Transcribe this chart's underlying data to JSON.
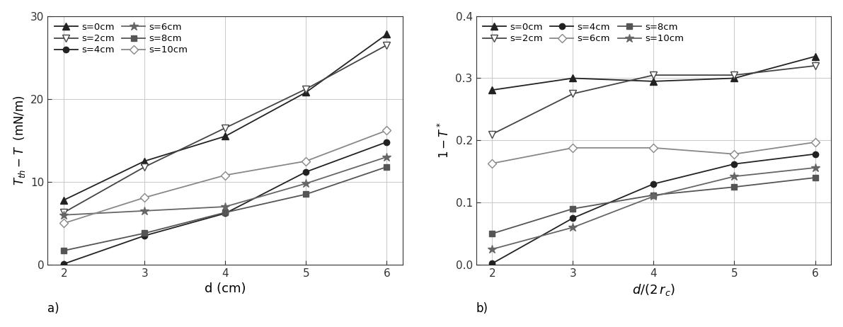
{
  "x": [
    2,
    3,
    4,
    5,
    6
  ],
  "left": {
    "ylabel": "$T_{th} - T$  (mN/m)",
    "xlabel": "d (cm)",
    "ylim": [
      0,
      30
    ],
    "yticks": [
      0,
      10,
      20,
      30
    ],
    "series": {
      "s=0cm": {
        "values": [
          7.8,
          12.5,
          15.5,
          20.8,
          27.8
        ],
        "marker": "^",
        "color": "#222222",
        "mfc": "#222222"
      },
      "s=2cm": {
        "values": [
          6.3,
          11.8,
          16.5,
          21.2,
          26.5
        ],
        "marker": "v",
        "color": "#444444",
        "mfc": "white"
      },
      "s=4cm": {
        "values": [
          0.1,
          3.5,
          6.2,
          11.2,
          14.8
        ],
        "marker": "o",
        "color": "#222222",
        "mfc": "#222222"
      },
      "s=6cm": {
        "values": [
          6.0,
          6.5,
          7.0,
          9.8,
          13.0
        ],
        "marker": "*",
        "color": "#666666",
        "mfc": "#666666"
      },
      "s=8cm": {
        "values": [
          1.7,
          3.8,
          6.3,
          8.5,
          11.8
        ],
        "marker": "s",
        "color": "#555555",
        "mfc": "#555555"
      },
      "s=10cm": {
        "values": [
          5.0,
          8.1,
          10.8,
          12.5,
          16.2
        ],
        "marker": "D",
        "color": "#888888",
        "mfc": "white"
      }
    },
    "legend_order": [
      "s=0cm",
      "s=2cm",
      "s=4cm",
      "s=6cm",
      "s=8cm",
      "s=10cm"
    ]
  },
  "right": {
    "ylabel": "$1 - T^*$",
    "xlabel": "d/(2 r_c)",
    "ylim": [
      0,
      0.4
    ],
    "yticks": [
      0.0,
      0.1,
      0.2,
      0.3,
      0.4
    ],
    "series": {
      "s=0cm": {
        "values": [
          0.281,
          0.3,
          0.295,
          0.3,
          0.335
        ],
        "marker": "^",
        "color": "#222222",
        "mfc": "#222222"
      },
      "s=2cm": {
        "values": [
          0.21,
          0.275,
          0.305,
          0.305,
          0.32
        ],
        "marker": "v",
        "color": "#444444",
        "mfc": "white"
      },
      "s=4cm": {
        "values": [
          0.002,
          0.075,
          0.13,
          0.162,
          0.178
        ],
        "marker": "o",
        "color": "#222222",
        "mfc": "#222222"
      },
      "s=6cm": {
        "values": [
          0.163,
          0.188,
          0.188,
          0.178,
          0.197
        ],
        "marker": "D",
        "color": "#888888",
        "mfc": "white"
      },
      "s=8cm": {
        "values": [
          0.05,
          0.09,
          0.112,
          0.125,
          0.14
        ],
        "marker": "s",
        "color": "#555555",
        "mfc": "#555555"
      },
      "s=10cm": {
        "values": [
          0.025,
          0.06,
          0.11,
          0.142,
          0.156
        ],
        "marker": "*",
        "color": "#666666",
        "mfc": "#666666"
      }
    },
    "legend_order": [
      "s=0cm",
      "s=2cm",
      "s=4cm",
      "s=6cm",
      "s=8cm",
      "s=10cm"
    ]
  },
  "subplot_labels": [
    "a)",
    "b)"
  ],
  "fig_bg": "white",
  "ax_bg": "white",
  "grid_color": "#cccccc",
  "linewidth": 1.3,
  "markersize": 6
}
